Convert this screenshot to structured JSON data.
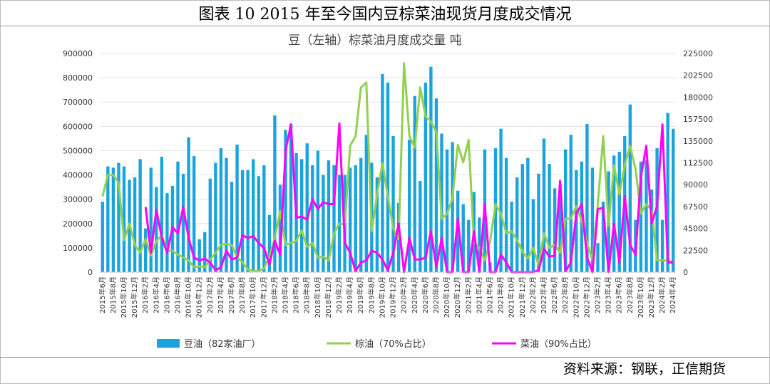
{
  "figure_title": "图表 10 2015 年至今国内豆棕菜油现货月度成交情况",
  "source": "资料来源：钢联，正信期货",
  "colors": {
    "bar": "#1BA3DE",
    "palm": "#92D050",
    "rapeseed": "#FF00FF"
  },
  "chart_data": {
    "type": "bar+line",
    "title": "豆（左轴）棕菜油月度成交量 吨",
    "categories": [
      "2015年6月",
      "2015年7月",
      "2015年8月",
      "2015年9月",
      "2015年10月",
      "2015年11月",
      "2015年12月",
      "2016年1月",
      "2016年2月",
      "2016年3月",
      "2016年4月",
      "2016年5月",
      "2016年6月",
      "2016年7月",
      "2016年8月",
      "2016年9月",
      "2016年10月",
      "2016年11月",
      "2016年12月",
      "2017年1月",
      "2017年2月",
      "2017年3月",
      "2017年4月",
      "2017年5月",
      "2017年6月",
      "2017年7月",
      "2017年8月",
      "2017年9月",
      "2017年10月",
      "2017年11月",
      "2017年12月",
      "2018年1月",
      "2018年2月",
      "2018年3月",
      "2018年4月",
      "2018年5月",
      "2018年6月",
      "2018年7月",
      "2018年8月",
      "2018年9月",
      "2018年10月",
      "2018年11月",
      "2018年12月",
      "2019年1月",
      "2019年2月",
      "2019年3月",
      "2019年4月",
      "2019年5月",
      "2019年6月",
      "2019年7月",
      "2019年8月",
      "2019年9月",
      "2019年10月",
      "2019年11月",
      "2019年12月",
      "2020年1月",
      "2020年2月",
      "2020年3月",
      "2020年4月",
      "2020年5月",
      "2020年6月",
      "2020年7月",
      "2020年8月",
      "2020年9月",
      "2020年10月",
      "2020年11月",
      "2020年12月",
      "2021年1月",
      "2021年2月",
      "2021年3月",
      "2021年4月",
      "2021年5月",
      "2021年6月",
      "2021年7月",
      "2021年8月",
      "2021年9月",
      "2021年10月",
      "2021年11月",
      "2021年12月",
      "2022年1月",
      "2022年2月",
      "2022年3月",
      "2022年4月",
      "2022年5月",
      "2022年6月",
      "2022年7月",
      "2022年8月",
      "2022年9月",
      "2022年10月",
      "2022年11月",
      "2022年12月",
      "2023年1月",
      "2023年2月",
      "2023年3月",
      "2023年4月",
      "2023年5月",
      "2023年6月",
      "2023年7月",
      "2023年8月",
      "2023年9月",
      "2023年10月",
      "2023年11月",
      "2023年12月",
      "2024年1月",
      "2024年2月",
      "2024年3月",
      "2024年4月"
    ],
    "x_tick_labels": [
      "2015年6月",
      "2015年8月",
      "2015年10月",
      "2015年12月",
      "2016年2月",
      "2016年4月",
      "2016年6月",
      "2016年8月",
      "2016年10月",
      "2016年12月",
      "2017年2月",
      "2017年4月",
      "2017年6月",
      "2017年8月",
      "2017年10月",
      "2017年12月",
      "2018年2月",
      "2018年4月",
      "2018年6月",
      "2018年8月",
      "2018年10月",
      "2018年12月",
      "2019年2月",
      "2019年4月",
      "2019年6月",
      "2019年8月",
      "2019年10月",
      "2019年12月",
      "2020年2月",
      "2020年4月",
      "2020年6月",
      "2020年8月",
      "2020年10月",
      "2020年12月",
      "2021年2月",
      "2021年4月",
      "2021年6月",
      "2021年8月",
      "2021年10月",
      "2021年12月",
      "2022年2月",
      "2022年4月",
      "2022年6月",
      "2022年8月",
      "2022年10月",
      "2022年12月",
      "2023年2月",
      "2023年4月",
      "2023年6月",
      "2023年8月",
      "2023年10月",
      "2023年12月",
      "2024年2月",
      "2024年4月"
    ],
    "left_axis": {
      "min": 0,
      "max": 900000,
      "ticks": [
        "0",
        "100000",
        "200000",
        "300000",
        "400000",
        "500000",
        "600000",
        "700000",
        "800000",
        "900000"
      ]
    },
    "right_axis": {
      "min": 0,
      "max": 225000,
      "ticks": [
        "0",
        "22500",
        "45000",
        "67500",
        "90000",
        "112500",
        "135000",
        "157500",
        "180000",
        "202500",
        "225000"
      ]
    },
    "series": [
      {
        "name": "豆油（82家油厂）",
        "type": "bar",
        "axis": "left",
        "values": [
          290000,
          435000,
          430000,
          450000,
          435000,
          380000,
          390000,
          465000,
          180000,
          430000,
          350000,
          475000,
          325000,
          355000,
          455000,
          405000,
          555000,
          478000,
          135000,
          165000,
          385000,
          450000,
          510000,
          470000,
          372000,
          525000,
          420000,
          420000,
          465000,
          395000,
          440000,
          235000,
          645000,
          360000,
          585000,
          610000,
          490000,
          465000,
          530000,
          440000,
          500000,
          400000,
          460000,
          440000,
          400000,
          400000,
          430000,
          440000,
          470000,
          565000,
          450000,
          390000,
          815000,
          780000,
          560000,
          285000,
          0,
          545000,
          725000,
          375000,
          780000,
          845000,
          715000,
          570000,
          505000,
          535000,
          335000,
          280000,
          215000,
          330000,
          225000,
          505000,
          40000,
          510000,
          590000,
          470000,
          290000,
          390000,
          445000,
          470000,
          300000,
          405000,
          550000,
          445000,
          345000,
          360000,
          505000,
          565000,
          420000,
          455000,
          610000,
          430000,
          120000,
          290000,
          415000,
          480000,
          495000,
          560000,
          690000,
          215000,
          455000,
          460000,
          340000,
          510000,
          215000,
          655000,
          590000
        ]
      },
      {
        "name": "棕油（70%占比）",
        "type": "line",
        "axis": "right",
        "values": [
          78000,
          100000,
          100000,
          92000,
          33000,
          50000,
          28000,
          20000,
          34000,
          17000,
          32000,
          38000,
          22000,
          22000,
          18000,
          15000,
          12000,
          5000,
          6000,
          5000,
          13000,
          20000,
          28000,
          29000,
          28000,
          15000,
          10000,
          3000,
          1000,
          1000,
          4000,
          16000,
          35000,
          63000,
          28000,
          30000,
          32000,
          43000,
          26000,
          30000,
          15000,
          16000,
          12000,
          40000,
          50000,
          49000,
          130000,
          140000,
          190000,
          195000,
          42000,
          80000,
          112000,
          78000,
          45000,
          34000,
          215000,
          140000,
          128000,
          190000,
          160000,
          155000,
          144000,
          55000,
          60000,
          76000,
          131000,
          113000,
          136000,
          30000,
          25000,
          12000,
          32000,
          70000,
          60000,
          40000,
          42000,
          33000,
          21000,
          14000,
          25000,
          7000,
          40000,
          25000,
          28000,
          20000,
          55000,
          55000,
          68000,
          53000,
          30000,
          12000,
          70000,
          140000,
          48000,
          110000,
          80000,
          110000,
          130000,
          106000,
          60000,
          70000,
          64000,
          12000,
          12000,
          12000,
          10000
        ]
      },
      {
        "name": "菜油（90%占比）",
        "type": "line",
        "axis": "right",
        "values": [
          null,
          null,
          null,
          null,
          null,
          null,
          null,
          null,
          67000,
          20000,
          64000,
          36000,
          20000,
          46000,
          40000,
          67000,
          35000,
          15000,
          12000,
          14000,
          10000,
          2000,
          5000,
          22000,
          13000,
          15000,
          38000,
          35000,
          37000,
          30000,
          25000,
          8000,
          32000,
          18000,
          125000,
          152000,
          56000,
          57000,
          54000,
          75000,
          65000,
          72000,
          70000,
          70000,
          153000,
          30000,
          20000,
          1000,
          10000,
          12000,
          22000,
          20000,
          13000,
          2000,
          20000,
          50000,
          0,
          35000,
          13000,
          13000,
          15000,
          42000,
          5000,
          35000,
          0,
          0,
          55000,
          0,
          0,
          42000,
          0,
          70000,
          0,
          0,
          18000,
          10000,
          0,
          0,
          0,
          0,
          0,
          2000,
          24000,
          16000,
          17000,
          94000,
          1000,
          10000,
          60000,
          70000,
          15000,
          0,
          65000,
          66000,
          0,
          50000,
          10000,
          78000,
          28000,
          18000,
          98000,
          130000,
          50000,
          68000,
          152000,
          10000,
          10000
        ]
      }
    ]
  }
}
